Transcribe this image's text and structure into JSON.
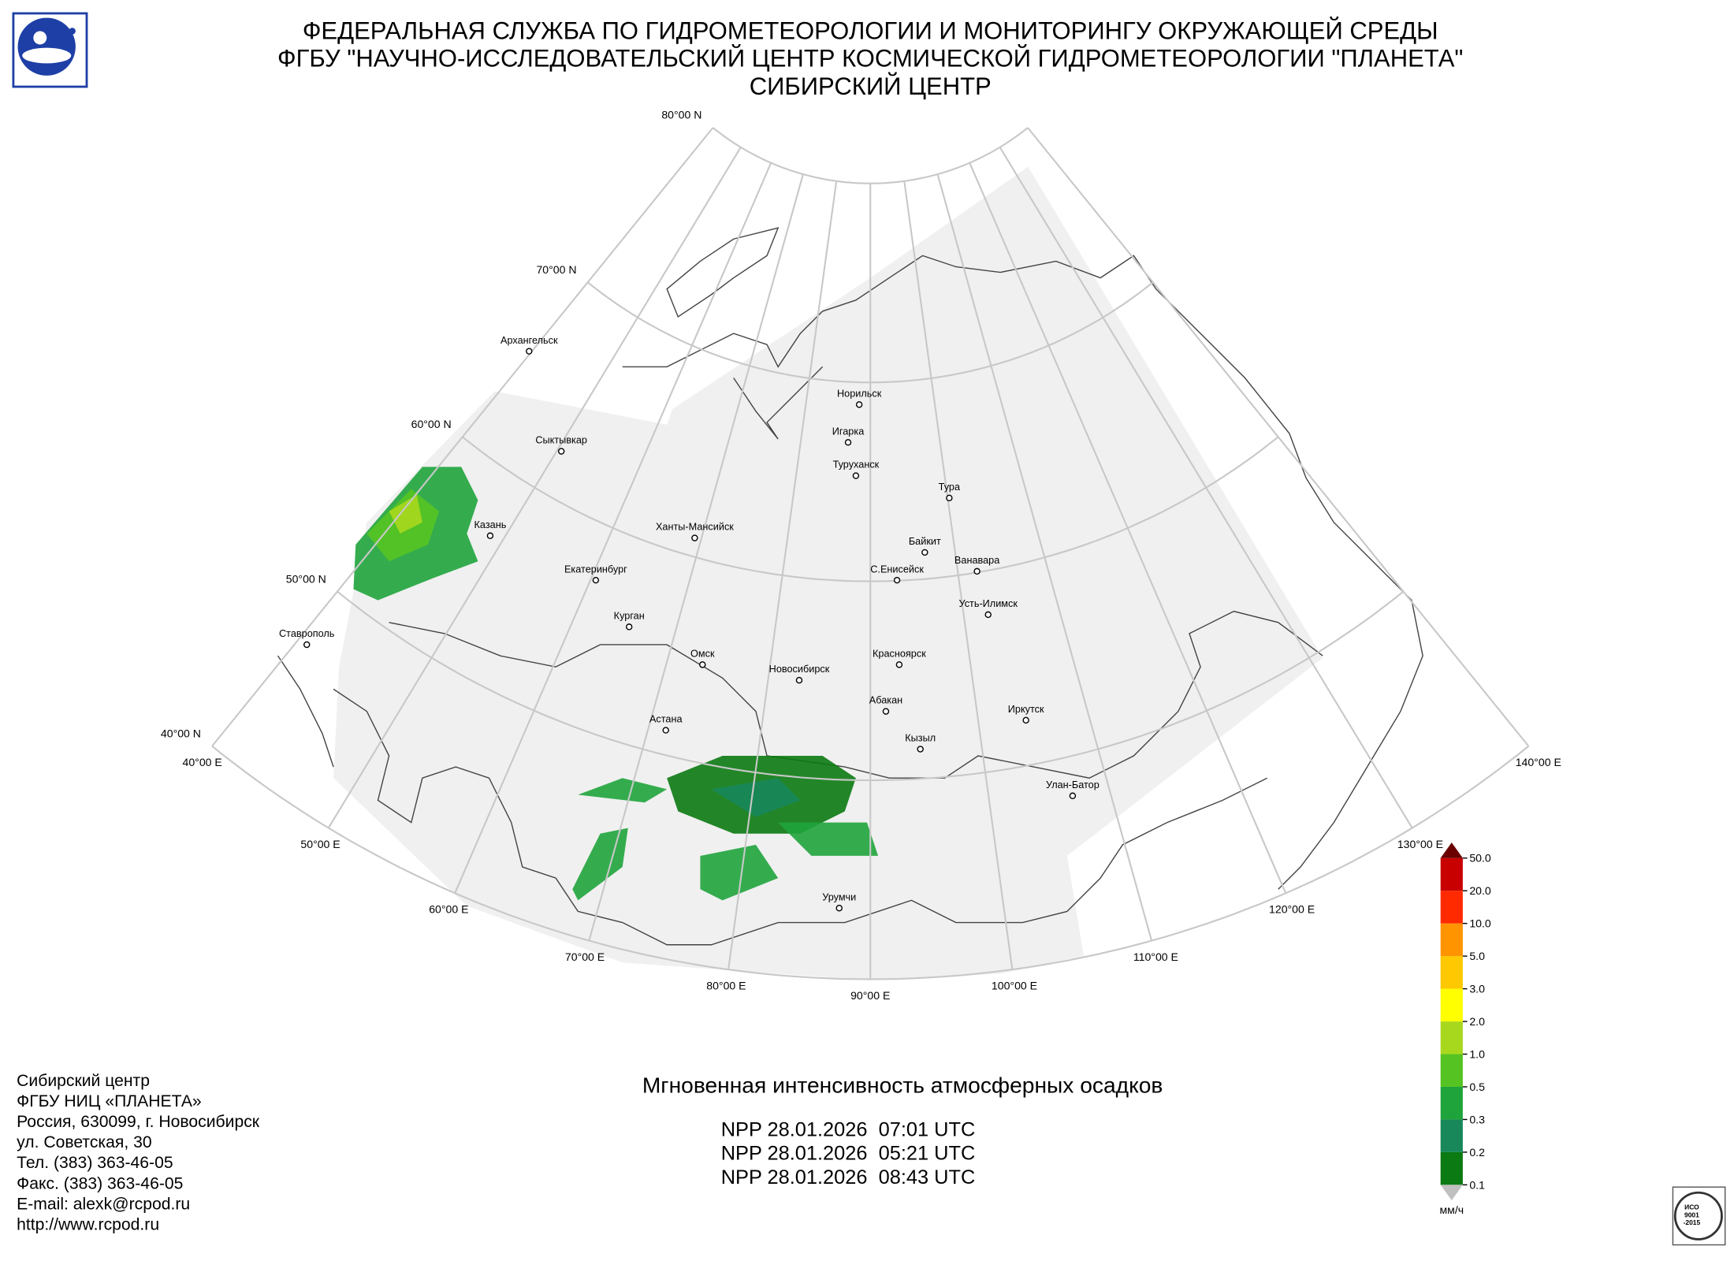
{
  "header": {
    "lines": [
      "ФЕДЕРАЛЬНАЯ СЛУЖБА ПО ГИДРОМЕТЕОРОЛОГИИ И МОНИТОРИНГУ ОКРУЖАЮЩЕЙ СРЕДЫ",
      "ФГБУ \"НАУЧНО-ИССЛЕДОВАТЕЛЬСКИЙ ЦЕНТР КОСМИЧЕСКОЙ ГИДРОМЕТЕОРОЛОГИИ \"ПЛАНЕТА\"",
      "СИБИРСКИЙ ЦЕНТР"
    ]
  },
  "map": {
    "parallel_labels": [
      "80°00 N",
      "70°00 N",
      "60°00 N",
      "50°00 N",
      "40°00 N"
    ],
    "meridian_labels": [
      "40°00 E",
      "50°00 E",
      "60°00 E",
      "70°00 E",
      "80°00 E",
      "90°00 E",
      "100°00 E",
      "110°00 E",
      "120°00 E",
      "130°00 E",
      "140°00 E"
    ],
    "cities": [
      "Архангельск",
      "Сыктывкар",
      "Казань",
      "Екатеринбург",
      "Ставрополь",
      "Курган",
      "Ханты-Мансийск",
      "Омск",
      "Астана",
      "Новосибирск",
      "Норильск",
      "Игарка",
      "Туруханск",
      "Тура",
      "Байкит",
      "С.Енисейск",
      "Ванавара",
      "Усть-Илимск",
      "Красноярск",
      "Абакан",
      "Кызыл",
      "Иркутск",
      "Улан-Батор",
      "Урумчи"
    ]
  },
  "legend": {
    "labels": [
      "0.1",
      "0.2",
      "0.3",
      "0.5",
      "1.0",
      "2.0",
      "3.0",
      "5.0",
      "10.0",
      "20.0",
      "50.0"
    ],
    "colors": [
      "#0b7a12",
      "#18875a",
      "#1fa43c",
      "#55c422",
      "#a8d81e",
      "#ffff00",
      "#ffc800",
      "#ff9400",
      "#ff2a00",
      "#c80000"
    ],
    "over_color": "#6a0000",
    "under_color": "#c0c0c0",
    "unit": "мм/ч"
  },
  "product": {
    "title": "Мгновенная интенсивность атмосферных осадков",
    "passes": [
      "NPP 28.01.2026  07:01 UTC",
      "NPP 28.01.2026  05:21 UTC",
      "NPP 28.01.2026  08:43 UTC"
    ]
  },
  "contact": {
    "lines": [
      "Сибирский центр",
      "ФГБУ НИЦ «ПЛАНЕТА»",
      "Россия, 630099, г. Новосибирск",
      "ул. Советская, 30",
      "Тел. (383) 363-46-05",
      "Факс. (383) 363-46-05",
      "E-mail: alexk@rcpod.ru",
      "http://www.rcpod.ru"
    ]
  },
  "badge": {
    "lines": [
      "ИСО",
      "9001",
      "-2015"
    ]
  }
}
